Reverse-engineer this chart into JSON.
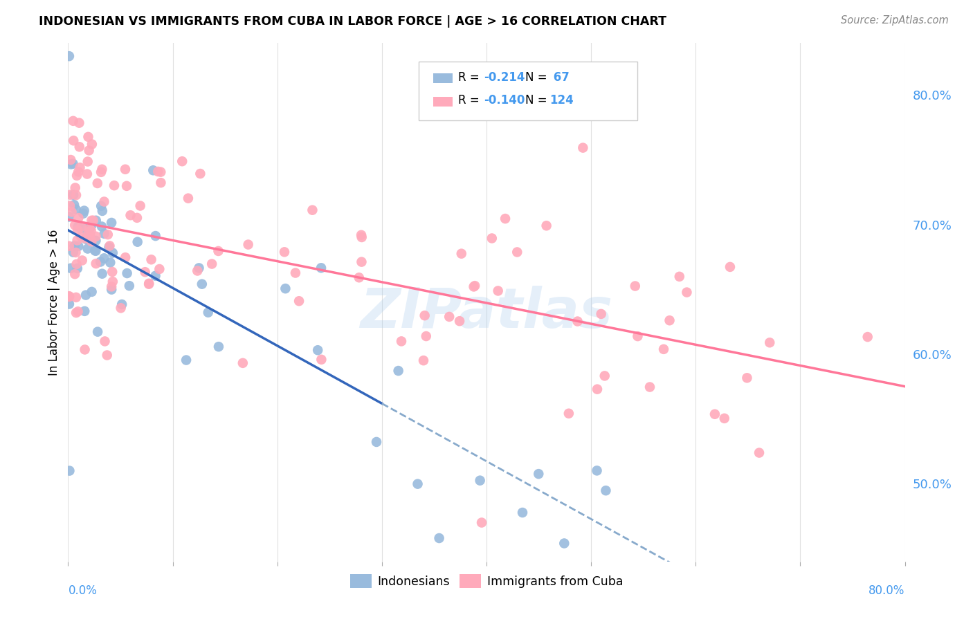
{
  "title": "INDONESIAN VS IMMIGRANTS FROM CUBA IN LABOR FORCE | AGE > 16 CORRELATION CHART",
  "source": "Source: ZipAtlas.com",
  "ylabel": "In Labor Force | Age > 16",
  "legend_blue_R": "R = -0.214",
  "legend_blue_N": "N =  67",
  "legend_pink_R": "R = -0.140",
  "legend_pink_N": "N = 124",
  "blue_color": "#99BBDD",
  "pink_color": "#FFAABB",
  "trend_blue_solid_color": "#3366BB",
  "trend_blue_dash_color": "#88AACC",
  "trend_pink_color": "#FF7799",
  "watermark": "ZIPatlas",
  "xlim": [
    0.0,
    0.8
  ],
  "ylim": [
    0.44,
    0.84
  ],
  "right_yticks": [
    0.5,
    0.6,
    0.7,
    0.8
  ],
  "right_ytick_labels": [
    "50.0%",
    "60.0%",
    "70.0%",
    "80.0%"
  ],
  "n_blue": 67,
  "n_pink": 124
}
